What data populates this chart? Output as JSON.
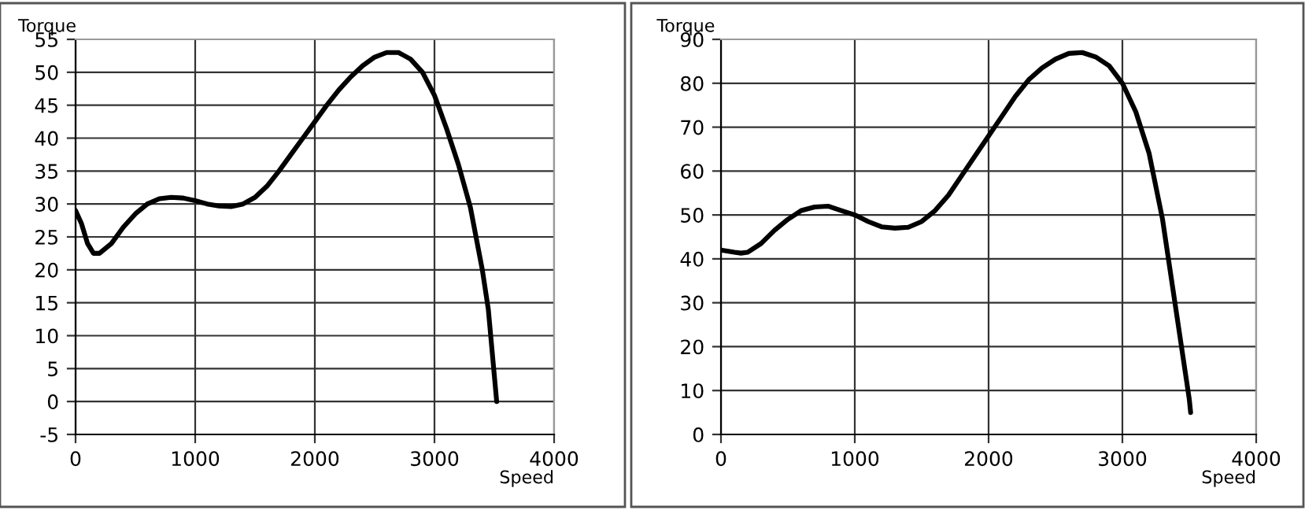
{
  "chart_data": [
    {
      "type": "line",
      "xlabel": "Speed",
      "ylabel": "Torque",
      "xlim": [
        0,
        4000
      ],
      "ylim": [
        -5,
        55
      ],
      "xticks": [
        0,
        1000,
        2000,
        3000,
        4000
      ],
      "yticks": [
        -5,
        0,
        5,
        10,
        15,
        20,
        25,
        30,
        35,
        40,
        45,
        50,
        55
      ],
      "grid": true,
      "legend": false,
      "marker": "none",
      "line_style": "solid",
      "series": [
        {
          "color": "#000000",
          "x": [
            0,
            50,
            100,
            150,
            200,
            300,
            400,
            500,
            600,
            700,
            800,
            900,
            1000,
            1100,
            1200,
            1300,
            1400,
            1500,
            1600,
            1700,
            1800,
            1900,
            2000,
            2100,
            2200,
            2300,
            2400,
            2500,
            2600,
            2700,
            2800,
            2900,
            3000,
            3100,
            3200,
            3300,
            3400,
            3450,
            3500,
            3520
          ],
          "values": [
            29,
            27,
            24,
            22.5,
            22.5,
            24,
            26.5,
            28.5,
            30,
            30.8,
            31,
            30.9,
            30.5,
            30,
            29.7,
            29.6,
            30,
            31,
            32.7,
            35,
            37.5,
            40,
            42.5,
            45,
            47.3,
            49.3,
            51,
            52.3,
            53,
            53,
            52,
            50,
            46.5,
            41.5,
            36,
            29.5,
            20,
            14,
            4,
            0
          ]
        }
      ]
    },
    {
      "type": "line",
      "xlabel": "Speed",
      "ylabel": "Torque",
      "xlim": [
        0,
        4000
      ],
      "ylim": [
        0,
        90
      ],
      "xticks": [
        0,
        1000,
        2000,
        3000,
        4000
      ],
      "yticks": [
        0,
        10,
        20,
        30,
        40,
        50,
        60,
        70,
        80,
        90
      ],
      "grid": true,
      "legend": false,
      "marker": "none",
      "line_style": "solid",
      "series": [
        {
          "color": "#000000",
          "x": [
            0,
            100,
            150,
            200,
            300,
            400,
            500,
            600,
            700,
            800,
            900,
            1000,
            1100,
            1200,
            1300,
            1400,
            1500,
            1600,
            1700,
            1800,
            1900,
            2000,
            2100,
            2200,
            2300,
            2400,
            2500,
            2600,
            2700,
            2800,
            2900,
            3000,
            3100,
            3200,
            3300,
            3400,
            3500,
            3510
          ],
          "values": [
            42,
            41.5,
            41.3,
            41.5,
            43.5,
            46.5,
            49,
            51,
            51.8,
            52,
            51,
            50,
            48.5,
            47.3,
            47,
            47.2,
            48.5,
            51,
            54.5,
            59,
            63.5,
            68,
            72.5,
            77,
            80.8,
            83.5,
            85.5,
            86.8,
            87,
            86,
            84,
            80,
            73.5,
            64,
            49,
            28.5,
            8,
            5
          ]
        }
      ]
    }
  ]
}
